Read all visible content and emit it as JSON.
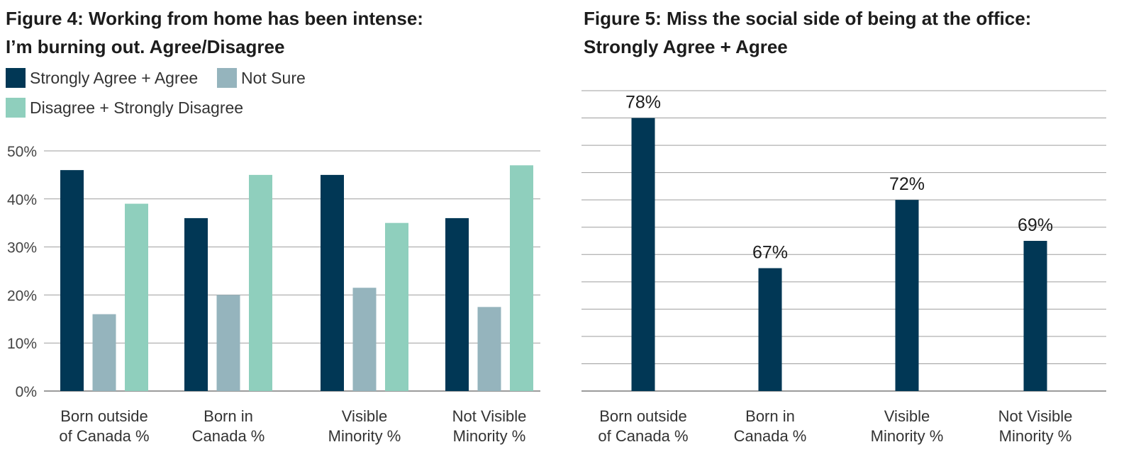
{
  "chart_data": [
    {
      "type": "bar",
      "title": [
        "Figure 4: Working from home has been intense:",
        "I’m burning out. Agree/Disagree"
      ],
      "categories": [
        [
          "Born outside",
          "of Canada %"
        ],
        [
          "Born in",
          "Canada %"
        ],
        [
          "Visible",
          "Minority %"
        ],
        [
          "Not Visible",
          "Minority %"
        ]
      ],
      "series": [
        {
          "name": "Strongly Agree + Agree",
          "color": "#013755",
          "values": [
            46,
            36,
            45,
            36
          ]
        },
        {
          "name": "Not Sure",
          "color": "#95b4bd",
          "values": [
            16,
            20,
            21.5,
            17.5
          ]
        },
        {
          "name": "Disagree + Strongly Disagree",
          "color": "#8fcfbd",
          "values": [
            39,
            45,
            35,
            47
          ]
        }
      ],
      "ylim": [
        0,
        50
      ],
      "yticks": [
        "0%",
        "10%",
        "20%",
        "30%",
        "40%",
        "50%"
      ],
      "ytick_values": [
        0,
        10,
        20,
        30,
        40,
        50
      ],
      "grid": true,
      "legend_position": "top-left"
    },
    {
      "type": "bar",
      "title": [
        "Figure 5: Miss the social side of being at the office:",
        "Strongly Agree + Agree"
      ],
      "categories": [
        [
          "Born outside",
          "of Canada %"
        ],
        [
          "Born in",
          "Canada %"
        ],
        [
          "Visible",
          "Minority %"
        ],
        [
          "Not Visible",
          "Minority %"
        ]
      ],
      "series": [
        {
          "color": "#013755",
          "values": [
            78,
            67,
            72,
            69
          ]
        }
      ],
      "data_labels": [
        "78%",
        "67%",
        "72%",
        "69%"
      ],
      "ylim": [
        58,
        80
      ],
      "ytick_values": [
        58,
        60,
        62,
        64,
        66,
        68,
        70,
        72,
        74,
        76,
        78,
        80
      ],
      "grid": true
    }
  ]
}
